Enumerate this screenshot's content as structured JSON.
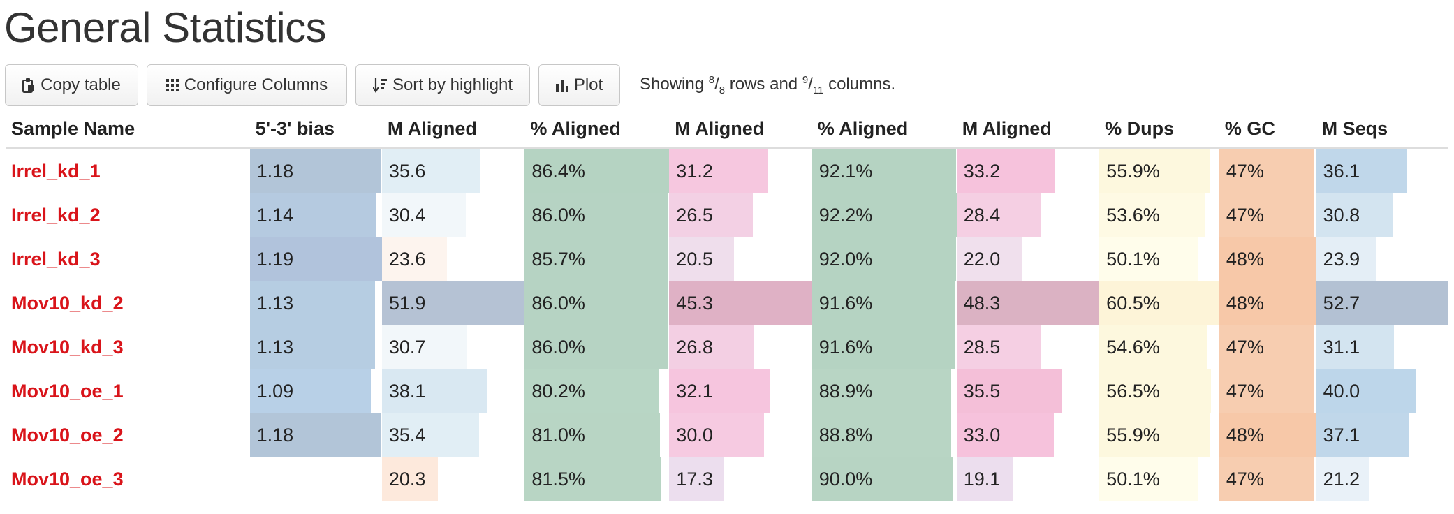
{
  "title": "General Statistics",
  "toolbar": {
    "copy_label": "Copy table",
    "config_label": "Configure Columns",
    "sort_label": "Sort by highlight",
    "plot_label": "Plot",
    "showing_prefix": "Showing ",
    "rows_shown": "8",
    "rows_total": "8",
    "rows_word": " rows and ",
    "cols_shown": "9",
    "cols_total": "11",
    "cols_word": " columns."
  },
  "table": {
    "columns": [
      {
        "label": "Sample Name"
      },
      {
        "label": "5'-3' bias",
        "max": 1.19,
        "color": "#b0c4de"
      },
      {
        "label": "M Aligned",
        "max": 51.9,
        "color": "#dcebf4"
      },
      {
        "label": "% Aligned",
        "max": 86.4,
        "color": "#b6d2c4"
      },
      {
        "label": "M Aligned",
        "max": 45.3,
        "color": "#f4c7dd"
      },
      {
        "label": "% Aligned",
        "max": 92.2,
        "color": "#b6d2c4"
      },
      {
        "label": "M Aligned",
        "max": 48.3,
        "color": "#f4c7dd"
      },
      {
        "label": "% Dups",
        "max": 60.5,
        "color": "#fdf8dc"
      },
      {
        "label": "% GC",
        "max": 48,
        "color": "#f6ccb1"
      },
      {
        "label": "M Seqs",
        "max": 52.7,
        "color": "#c5daea"
      }
    ],
    "rows": [
      {
        "name": "Irrel_kd_1",
        "cells": [
          "1.18",
          "35.6",
          "86.4%",
          "31.2",
          "92.1%",
          "33.2",
          "55.9%",
          "47%",
          "36.1"
        ],
        "values": [
          1.18,
          35.6,
          86.4,
          31.2,
          92.1,
          33.2,
          55.9,
          47,
          36.1
        ],
        "colors": [
          "#b2c5d8",
          "#e1eef5",
          "#b5d3c2",
          "#f6c7df",
          "#b5d3c2",
          "#f6c2dc",
          "#fdf8de",
          "#f7cdb0",
          "#c0d7ea"
        ]
      },
      {
        "name": "Irrel_kd_2",
        "cells": [
          "1.14",
          "30.4",
          "86.0%",
          "26.5",
          "92.2%",
          "28.4",
          "53.6%",
          "47%",
          "30.8"
        ],
        "values": [
          1.14,
          30.4,
          86.0,
          26.5,
          92.2,
          28.4,
          53.6,
          47,
          30.8
        ],
        "colors": [
          "#b5cae0",
          "#f2f7fa",
          "#b6d3c3",
          "#f3d0e4",
          "#b5d3c2",
          "#f5cfe3",
          "#fefae4",
          "#f7cdb0",
          "#d3e4f0"
        ]
      },
      {
        "name": "Irrel_kd_3",
        "cells": [
          "1.19",
          "23.6",
          "85.7%",
          "20.5",
          "92.0%",
          "22.0",
          "50.1%",
          "48%",
          "23.9"
        ],
        "values": [
          1.19,
          23.6,
          85.7,
          20.5,
          92.0,
          22.0,
          50.1,
          48,
          23.9
        ],
        "colors": [
          "#b1c3dc",
          "#fdf4ee",
          "#b6d3c3",
          "#efdeec",
          "#b5d3c2",
          "#f0e0ed",
          "#fffdeb",
          "#f7c8a8",
          "#e4eef6"
        ]
      },
      {
        "name": "Mov10_kd_2",
        "cells": [
          "1.13",
          "51.9",
          "86.0%",
          "45.3",
          "91.6%",
          "48.3",
          "60.5%",
          "48%",
          "52.7"
        ],
        "values": [
          1.13,
          51.9,
          86.0,
          45.3,
          91.6,
          48.3,
          60.5,
          48,
          52.7
        ],
        "colors": [
          "#b6cde2",
          "#b5c2d4",
          "#b6d3c3",
          "#dfb1c5",
          "#b5d3c2",
          "#dbb2c3",
          "#fdf4d8",
          "#f7c8a8",
          "#b3c1d3"
        ]
      },
      {
        "name": "Mov10_kd_3",
        "cells": [
          "1.13",
          "30.7",
          "86.0%",
          "26.8",
          "91.6%",
          "28.5",
          "54.6%",
          "47%",
          "31.1"
        ],
        "values": [
          1.13,
          30.7,
          86.0,
          26.8,
          91.6,
          28.5,
          54.6,
          47,
          31.1
        ],
        "colors": [
          "#b6cde2",
          "#f2f7fa",
          "#b6d3c3",
          "#f3cfe3",
          "#b5d3c2",
          "#f5cfe3",
          "#fdf8de",
          "#f7cdb0",
          "#d3e4f0"
        ]
      },
      {
        "name": "Mov10_oe_1",
        "cells": [
          "1.09",
          "38.1",
          "80.2%",
          "32.1",
          "88.9%",
          "35.5",
          "56.5%",
          "47%",
          "40.0"
        ],
        "values": [
          1.09,
          38.1,
          80.2,
          32.1,
          88.9,
          35.5,
          56.5,
          47,
          40.0
        ],
        "colors": [
          "#b8d0e7",
          "#d9e8f2",
          "#b8d6c5",
          "#f6c5de",
          "#b8d5c4",
          "#f4bfd8",
          "#fdf8de",
          "#f7cdb0",
          "#bdd6ea"
        ]
      },
      {
        "name": "Mov10_oe_2",
        "cells": [
          "1.18",
          "35.4",
          "81.0%",
          "30.0",
          "88.8%",
          "33.0",
          "55.9%",
          "48%",
          "37.1"
        ],
        "values": [
          1.18,
          35.4,
          81.0,
          30.0,
          88.8,
          33.0,
          55.9,
          48,
          37.1
        ],
        "colors": [
          "#b2c5d8",
          "#e1eef5",
          "#b8d5c4",
          "#f6cae1",
          "#b8d5c4",
          "#f6c2dc",
          "#fdf8de",
          "#f7c8a8",
          "#c0d7ea"
        ]
      },
      {
        "name": "Mov10_oe_3",
        "cells": [
          "",
          "20.3",
          "81.5%",
          "17.3",
          "90.0%",
          "19.1",
          "50.1%",
          "47%",
          "21.2"
        ],
        "values": [
          null,
          20.3,
          81.5,
          17.3,
          90.0,
          19.1,
          50.1,
          47,
          21.2
        ],
        "colors": [
          "#ffffff",
          "#fde9dc",
          "#b8d5c4",
          "#ecdeee",
          "#b7d4c3",
          "#ecdeee",
          "#fffdeb",
          "#f7cdb0",
          "#e9f1f8"
        ]
      }
    ]
  }
}
